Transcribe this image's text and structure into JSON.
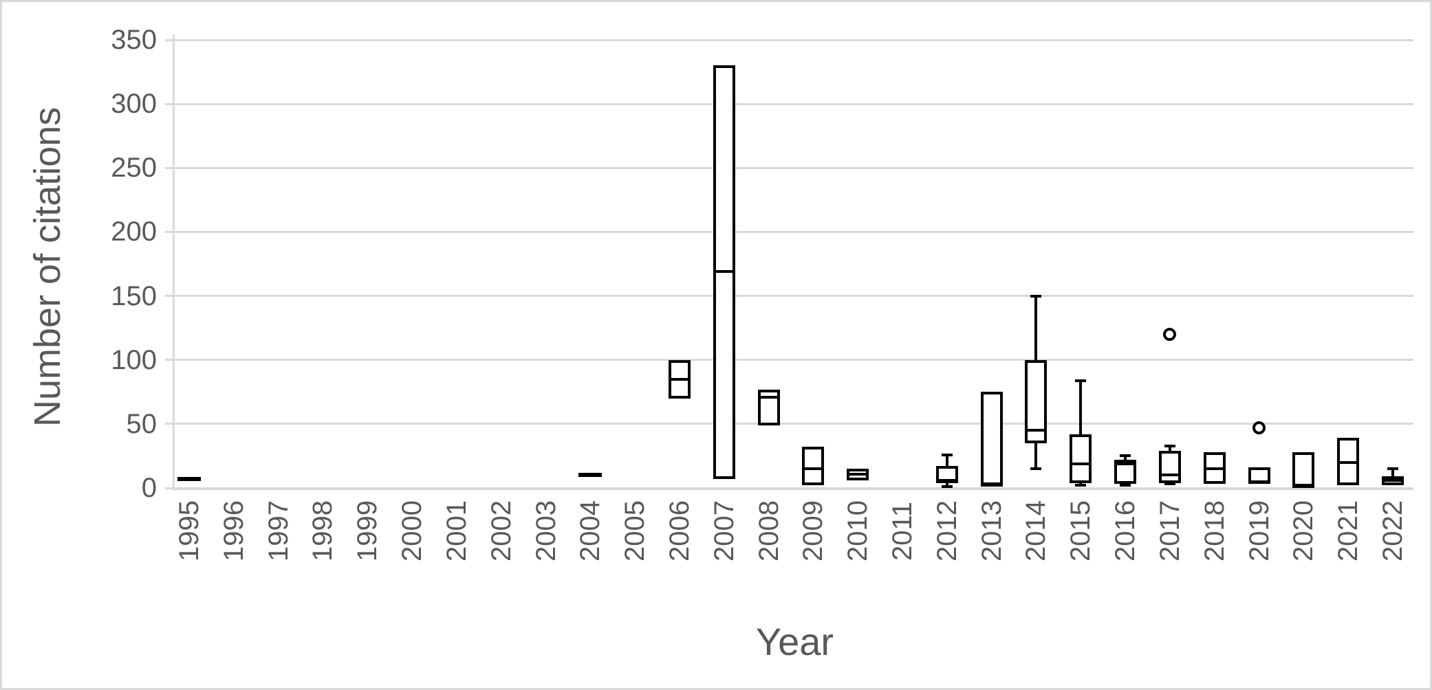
{
  "figure": {
    "background_color": "#ffffff",
    "border_color": "#d9d9d9"
  },
  "chart_data": {
    "type": "boxplot",
    "title": "",
    "xlabel": "Year",
    "ylabel": "Number of citations",
    "ylim": [
      0,
      350
    ],
    "yticks": [
      0,
      50,
      100,
      150,
      200,
      250,
      300,
      350
    ],
    "grid": "horizontal gridlines on, light gray",
    "legend": "none",
    "colors": {
      "box_stroke": "#000000",
      "box_fill": "#ffffff",
      "gridline": "#d9d9d9",
      "axis_text": "#595959"
    },
    "categories": [
      "1995",
      "1996",
      "1997",
      "1998",
      "1999",
      "2000",
      "2001",
      "2002",
      "2003",
      "2004",
      "2005",
      "2006",
      "2007",
      "2008",
      "2009",
      "2010",
      "2011",
      "2012",
      "2013",
      "2014",
      "2015",
      "2016",
      "2017",
      "2018",
      "2019",
      "2020",
      "2021",
      "2022"
    ],
    "boxes": [
      {
        "year": "1995",
        "single": 7
      },
      null,
      null,
      null,
      null,
      null,
      null,
      null,
      null,
      {
        "year": "2004",
        "single": 10
      },
      null,
      {
        "year": "2006",
        "min": 70,
        "q1": 70,
        "median": 85,
        "q3": 100,
        "max": 100
      },
      {
        "year": "2007",
        "min": 7,
        "q1": 7,
        "median": 169,
        "q3": 330,
        "max": 330
      },
      {
        "year": "2008",
        "min": 49,
        "q1": 49,
        "median": 71,
        "q3": 77,
        "max": 77
      },
      {
        "year": "2009",
        "min": 2,
        "q1": 2,
        "median": 15,
        "q3": 32,
        "max": 32
      },
      {
        "year": "2010",
        "min": 6,
        "q1": 6,
        "median": 11,
        "q3": 15,
        "max": 15
      },
      null,
      {
        "year": "2012",
        "min": 1,
        "q1": 4,
        "median": 6,
        "q3": 17,
        "max": 26
      },
      {
        "year": "2013",
        "min": 2,
        "q1": 2,
        "median": 2,
        "q3": 75,
        "max": 75
      },
      {
        "year": "2014",
        "min": 15,
        "q1": 35,
        "median": 45,
        "q3": 100,
        "max": 150
      },
      {
        "year": "2015",
        "min": 2,
        "q1": 4,
        "median": 19,
        "q3": 42,
        "max": 84
      },
      {
        "year": "2016",
        "min": 2,
        "q1": 3,
        "median": 19,
        "q3": 22,
        "max": 25
      },
      {
        "year": "2017",
        "min": 3,
        "q1": 4,
        "median": 10,
        "q3": 29,
        "max": 33,
        "outliers": [
          120
        ]
      },
      {
        "year": "2018",
        "min": 3,
        "q1": 3,
        "median": 15,
        "q3": 28,
        "max": 28
      },
      {
        "year": "2019",
        "min": 3,
        "q1": 3,
        "median": 5,
        "q3": 16,
        "max": 16,
        "outliers": [
          47
        ]
      },
      {
        "year": "2020",
        "min": 1,
        "q1": 1,
        "median": 1,
        "q3": 28,
        "max": 28
      },
      {
        "year": "2021",
        "min": 2,
        "q1": 2,
        "median": 20,
        "q3": 39,
        "max": 39
      },
      {
        "year": "2022",
        "min": 2,
        "q1": 2,
        "median": 6,
        "q3": 9,
        "max": 15
      }
    ]
  }
}
